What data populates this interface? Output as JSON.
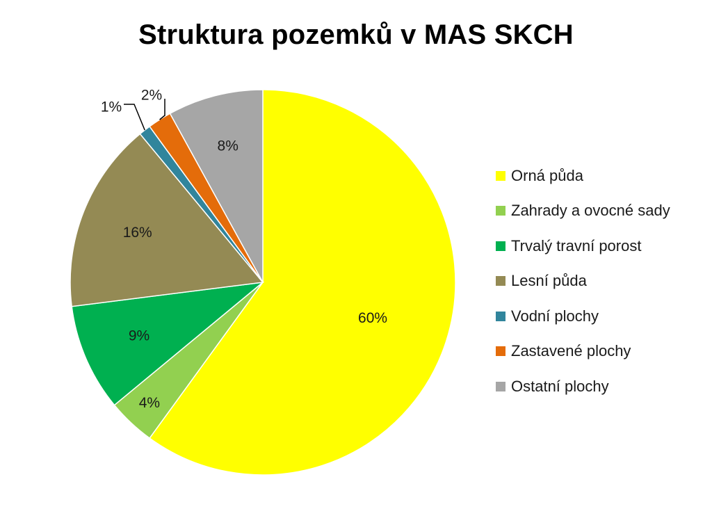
{
  "chart_data": {
    "type": "pie",
    "title": "Struktura pozemků v MAS SKCH",
    "categories": [
      "Orná půda",
      "Zahrady a ovocné sady",
      "Trvalý travní porost",
      "Lesní půda",
      "Vodní plochy",
      "Zastavené plochy",
      "Ostatní plochy"
    ],
    "values": [
      60,
      4,
      9,
      16,
      1,
      2,
      8
    ],
    "labels": [
      "60%",
      "4%",
      "9%",
      "16%",
      "1%",
      "2%",
      "8%"
    ],
    "colors": [
      "#FFFF00",
      "#92D050",
      "#00B050",
      "#948A54",
      "#31859C",
      "#E46C0A",
      "#A6A6A6"
    ],
    "legend_position": "right",
    "start_angle": "12 o'clock",
    "direction": "clockwise"
  }
}
